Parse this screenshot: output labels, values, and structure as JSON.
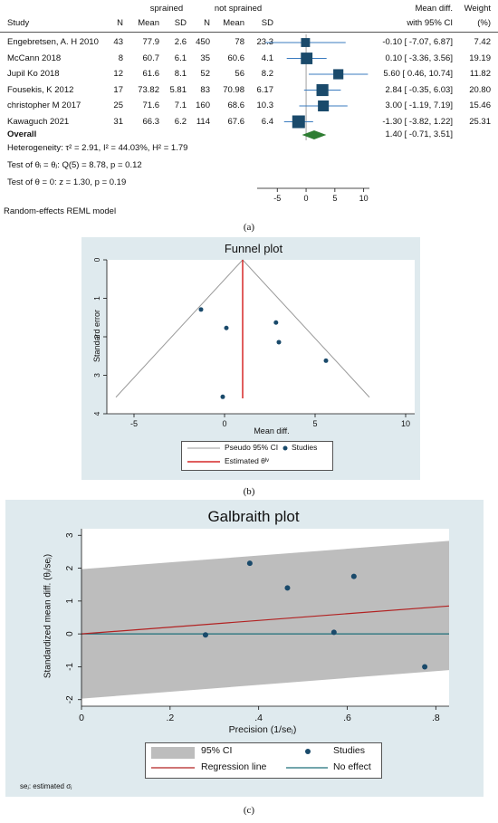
{
  "forest": {
    "headers": {
      "group1": "sprained",
      "group2": "not sprained",
      "study": "Study",
      "n1": "N",
      "mean1": "Mean",
      "sd1": "SD",
      "n2": "N",
      "mean2": "Mean",
      "sd2": "SD",
      "md_line1": "Mean diff.",
      "md_line2": "with 95% CI",
      "w_line1": "Weight",
      "w_line2": "(%)"
    },
    "rows": [
      {
        "study": "Engebretsen, A. H 2010",
        "n1": "43",
        "mean1": "77.9",
        "sd1": "2.6",
        "n2": "450",
        "mean2": "78",
        "sd2": "23.3",
        "md_text": "-0.10 [ -7.07,  6.87]",
        "weight_text": "7.42",
        "md": -0.1,
        "lo": -7.07,
        "hi": 6.87,
        "weight": 7.42
      },
      {
        "study": "McCann 2018",
        "n1": "8",
        "mean1": "60.7",
        "sd1": "6.1",
        "n2": "35",
        "mean2": "60.6",
        "sd2": "4.1",
        "md_text": "0.10 [ -3.36,  3.56]",
        "weight_text": "19.19",
        "md": 0.1,
        "lo": -3.36,
        "hi": 3.56,
        "weight": 19.19
      },
      {
        "study": "Jupil Ko 2018",
        "n1": "12",
        "mean1": "61.6",
        "sd1": "8.1",
        "n2": "52",
        "mean2": "56",
        "sd2": "8.2",
        "md_text": "5.60 [  0.46, 10.74]",
        "weight_text": "11.82",
        "md": 5.6,
        "lo": 0.46,
        "hi": 10.74,
        "weight": 11.82
      },
      {
        "study": "Fousekis, K 2012",
        "n1": "17",
        "mean1": "73.82",
        "sd1": "5.81",
        "n2": "83",
        "mean2": "70.98",
        "sd2": "6.17",
        "md_text": "2.84 [ -0.35,  6.03]",
        "weight_text": "20.80",
        "md": 2.84,
        "lo": -0.35,
        "hi": 6.03,
        "weight": 20.8
      },
      {
        "study": "christopher M 2017",
        "n1": "25",
        "mean1": "71.6",
        "sd1": "7.1",
        "n2": "160",
        "mean2": "68.6",
        "sd2": "10.3",
        "md_text": "3.00 [ -1.19,  7.19]",
        "weight_text": "15.46",
        "md": 3.0,
        "lo": -1.19,
        "hi": 7.19,
        "weight": 15.46
      },
      {
        "study": "Kawaguch 2021",
        "n1": "31",
        "mean1": "66.3",
        "sd1": "6.2",
        "n2": "114",
        "mean2": "67.6",
        "sd2": "6.4",
        "md_text": "-1.30 [ -3.82,  1.22]",
        "weight_text": "25.31",
        "md": -1.3,
        "lo": -3.82,
        "hi": 1.22,
        "weight": 25.31
      }
    ],
    "overall": {
      "label": "Overall",
      "md_text": "1.40 [ -0.71,  3.51]",
      "md": 1.4,
      "lo": -0.71,
      "hi": 3.51
    },
    "stats": [
      "Heterogeneity: τ² = 2.91, I² = 44.03%, H² = 1.79",
      "Test of θᵢ = θⱼ: Q(5) = 8.78, p = 0.12",
      "Test of θ = 0: z = 1.30, p = 0.19"
    ],
    "axis_ticks": [
      "-5",
      "0",
      "5",
      "10"
    ],
    "model_note": "Random-effects REML model",
    "caption": "(a)",
    "colors": {
      "marker": "#1a4a6b",
      "ci_line": "#3a7bbf",
      "diamond": "#2e7d32"
    }
  },
  "funnel": {
    "title": "Funnel plot",
    "xlabel": "Mean diff.",
    "ylabel": "Standard error",
    "legend": {
      "ci": "Pseudo 95% CI",
      "studies": "Studies",
      "estimated": "Estimated θᴵᵛ"
    },
    "caption": "(b)",
    "colors": {
      "point": "#1a4a6b",
      "line": "#d62828",
      "ci": "#9a9a9a",
      "background": "#dfeaee"
    }
  },
  "galbraith": {
    "title": "Galbraith plot",
    "xlabel": "Precision (1/seⱼ)",
    "ylabel": "Standardized mean diff. (θⱼ/seⱼ)",
    "legend": {
      "ci": "95% CI",
      "studies": "Studies",
      "regression": "Regression line",
      "noeffect": "No effect"
    },
    "footnote": "seⱼ: estimated σⱼ",
    "caption": "(c)",
    "colors": {
      "point": "#1a4a6b",
      "regression": "#b22222",
      "noeffect": "#1f6f7a",
      "band": "#bdbdbd",
      "background": "#dfeaee"
    }
  },
  "chart_data": [
    {
      "type": "scatter",
      "title": "",
      "subtitle": "forest plot",
      "x_label": "",
      "x_ticks": [
        -5,
        0,
        5,
        10
      ],
      "xlim": [
        -8.5,
        11
      ],
      "categories": [
        "Engebretsen, A. H 2010",
        "McCann 2018",
        "Jupil Ko 2018",
        "Fousekis, K 2012",
        "christopher M 2017",
        "Kawaguch 2021",
        "Overall"
      ],
      "series": [
        {
          "values": [
            -0.1,
            0.1,
            5.6,
            2.84,
            3.0,
            -1.3,
            1.4
          ],
          "ci_low": [
            -7.07,
            -3.36,
            0.46,
            -0.35,
            -1.19,
            -3.82,
            -0.71
          ],
          "ci_high": [
            6.87,
            3.56,
            10.74,
            6.03,
            7.19,
            1.22,
            3.51
          ],
          "weights": [
            7.42,
            19.19,
            11.82,
            20.8,
            15.46,
            25.31,
            100
          ]
        }
      ]
    },
    {
      "type": "scatter",
      "title": "Funnel plot",
      "xlabel": "Mean diff.",
      "ylabel": "Standard error",
      "xlim": [
        -6.5,
        10.5
      ],
      "ylim": [
        0,
        4
      ],
      "y_reversed": true,
      "x_ticks": [
        -5,
        0,
        5,
        10
      ],
      "y_ticks": [
        0,
        1,
        2,
        3,
        4
      ],
      "estimated_theta": 1.0,
      "pseudo_ci": {
        "apex": [
          1.0,
          0
        ],
        "left": [
          -6.0,
          3.57
        ],
        "right": [
          8.0,
          3.57
        ]
      },
      "series": [
        {
          "name": "Studies",
          "x": [
            -1.3,
            0.1,
            2.84,
            3.0,
            5.6,
            -0.1
          ],
          "y": [
            1.29,
            1.77,
            1.63,
            2.14,
            2.62,
            3.56
          ]
        }
      ],
      "legend": "bottom"
    },
    {
      "type": "scatter",
      "title": "Galbraith plot",
      "xlabel": "Precision (1/seⱼ)",
      "ylabel": "Standardized mean diff. (θⱼ/seⱼ)",
      "xlim": [
        0,
        0.83
      ],
      "ylim": [
        -2.2,
        3.2
      ],
      "x_ticks": [
        0,
        0.2,
        0.4,
        0.6,
        0.8
      ],
      "x_tick_labels": [
        "0",
        ".2",
        ".4",
        ".6",
        ".8"
      ],
      "y_ticks": [
        -2,
        -1,
        0,
        1,
        2,
        3
      ],
      "series": [
        {
          "name": "Studies",
          "x": [
            0.28,
            0.38,
            0.465,
            0.57,
            0.615,
            0.775
          ],
          "y": [
            -0.03,
            2.15,
            1.4,
            0.05,
            1.75,
            -1.0
          ]
        }
      ],
      "regression_line": {
        "x": [
          0,
          0.83
        ],
        "y": [
          0,
          0.85
        ]
      },
      "ci_band": {
        "lower": [
          [
            0,
            -1.97
          ],
          [
            0.83,
            -1.1
          ]
        ],
        "upper": [
          [
            0,
            1.97
          ],
          [
            0.83,
            2.83
          ]
        ]
      },
      "no_effect": 0,
      "legend": "bottom"
    }
  ]
}
